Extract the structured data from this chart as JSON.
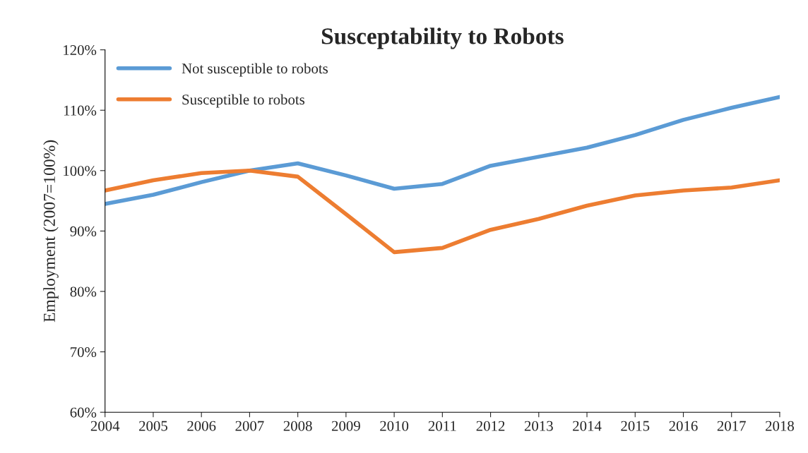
{
  "chart_data": {
    "type": "line",
    "title": "Susceptability to Robots",
    "ylabel": "Employment (2007=100%)",
    "x": [
      2004,
      2005,
      2006,
      2007,
      2008,
      2009,
      2010,
      2011,
      2012,
      2013,
      2014,
      2015,
      2016,
      2017,
      2018
    ],
    "series": [
      {
        "name": "Not susceptible to robots",
        "color": "#5b9bd5",
        "values": [
          94.5,
          96,
          98.1,
          100,
          101.2,
          99.2,
          97,
          97.8,
          100.8,
          102.3,
          103.8,
          105.9,
          108.4,
          110.4,
          112.2
        ]
      },
      {
        "name": "Susceptible to robots",
        "color": "#ed7d31",
        "values": [
          96.7,
          98.4,
          99.6,
          100,
          99,
          92.8,
          86.5,
          87.2,
          90.2,
          92,
          94.2,
          95.9,
          96.7,
          97.2,
          98.4
        ]
      }
    ],
    "xlim": [
      2004,
      2018
    ],
    "xticks": [
      2004,
      2005,
      2006,
      2007,
      2008,
      2009,
      2010,
      2011,
      2012,
      2013,
      2014,
      2015,
      2016,
      2017,
      2018
    ],
    "ylim": [
      60,
      120
    ],
    "yticks": [
      {
        "value": 60,
        "label": "60%"
      },
      {
        "value": 70,
        "label": "70%"
      },
      {
        "value": 80,
        "label": "80%"
      },
      {
        "value": 90,
        "label": "90%"
      },
      {
        "value": 100,
        "label": "100%"
      },
      {
        "value": 110,
        "label": "110%"
      },
      {
        "value": 120,
        "label": "120%"
      }
    ],
    "grid": false,
    "legend": "top left",
    "marker": "none",
    "line_style": "solid"
  }
}
